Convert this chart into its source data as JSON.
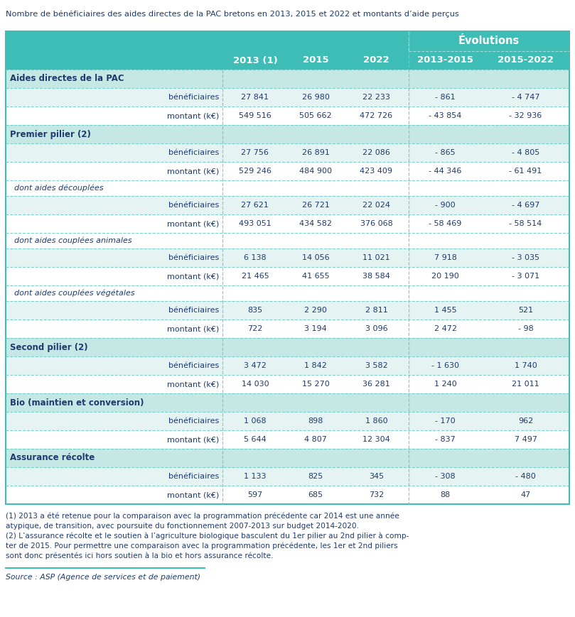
{
  "title": "Nombre de bénéficiaires des aides directes de la PAC bretons en 2013, 2015 et 2022 et montants d’aide perçus",
  "teal": "#3dbdb5",
  "section_bg": "#c5e8e5",
  "row_light": "#e5f4f2",
  "row_white": "#ffffff",
  "header_text": "#ffffff",
  "body_text": "#1e3a6e",
  "border_color": "#3dbdb5",
  "dashed_color": "#6dccc7",
  "columns": [
    "",
    "2013 (1)",
    "2015",
    "2022",
    "2013-2015",
    "2015-2022"
  ],
  "evolutions_label": "Évolutions",
  "rows": [
    {
      "type": "section",
      "label": "Aides directes de la PAC"
    },
    {
      "type": "data",
      "label": "bénéficiaires",
      "vals": [
        "27 841",
        "26 980",
        "22 233",
        "- 861",
        "- 4 747"
      ]
    },
    {
      "type": "data",
      "label": "montant (k€)",
      "vals": [
        "549 516",
        "505 662",
        "472 726",
        "- 43 854",
        "- 32 936"
      ]
    },
    {
      "type": "section",
      "label": "Premier pilier (2)"
    },
    {
      "type": "data",
      "label": "bénéficiaires",
      "vals": [
        "27 756",
        "26 891",
        "22 086",
        "- 865",
        "- 4 805"
      ]
    },
    {
      "type": "data",
      "label": "montant (k€)",
      "vals": [
        "529 246",
        "484 900",
        "423 409",
        "- 44 346",
        "- 61 491"
      ]
    },
    {
      "type": "subsection",
      "label": "dont aides découplées"
    },
    {
      "type": "data",
      "label": "bénéficiaires",
      "vals": [
        "27 621",
        "26 721",
        "22 024",
        "- 900",
        "- 4 697"
      ]
    },
    {
      "type": "data",
      "label": "montant (k€)",
      "vals": [
        "493 051",
        "434 582",
        "376 068",
        "- 58 469",
        "- 58 514"
      ]
    },
    {
      "type": "subsection",
      "label": "dont aides couplées animales"
    },
    {
      "type": "data",
      "label": "bénéficiaires",
      "vals": [
        "6 138",
        "14 056",
        "11 021",
        "7 918",
        "- 3 035"
      ]
    },
    {
      "type": "data",
      "label": "montant (k€)",
      "vals": [
        "21 465",
        "41 655",
        "38 584",
        "20 190",
        "- 3 071"
      ]
    },
    {
      "type": "subsection",
      "label": "dont aides couplées végétales"
    },
    {
      "type": "data",
      "label": "bénéficiaires",
      "vals": [
        "835",
        "2 290",
        "2 811",
        "1 455",
        "521"
      ]
    },
    {
      "type": "data",
      "label": "montant (k€)",
      "vals": [
        "722",
        "3 194",
        "3 096",
        "2 472",
        "- 98"
      ]
    },
    {
      "type": "section",
      "label": "Second pilier (2)"
    },
    {
      "type": "data",
      "label": "bénéficiaires",
      "vals": [
        "3 472",
        "1 842",
        "3 582",
        "- 1 630",
        "1 740"
      ]
    },
    {
      "type": "data",
      "label": "montant (k€)",
      "vals": [
        "14 030",
        "15 270",
        "36 281",
        "1 240",
        "21 011"
      ]
    },
    {
      "type": "section",
      "label": "Bio (maintien et conversion)"
    },
    {
      "type": "data",
      "label": "bénéficiaires",
      "vals": [
        "1 068",
        "898",
        "1 860",
        "- 170",
        "962"
      ]
    },
    {
      "type": "data",
      "label": "montant (k€)",
      "vals": [
        "5 644",
        "4 807",
        "12 304",
        "- 837",
        "7 497"
      ]
    },
    {
      "type": "section",
      "label": "Assurance récolte"
    },
    {
      "type": "data",
      "label": "bénéficiaires",
      "vals": [
        "1 133",
        "825",
        "345",
        "- 308",
        "- 480"
      ]
    },
    {
      "type": "data",
      "label": "montant (k€)",
      "vals": [
        "597",
        "685",
        "732",
        "88",
        "47"
      ]
    }
  ],
  "footnote1": "(1) 2013 a été retenue pour la comparaison avec la programmation précédente car 2014 est une année\natypique, de transition, avec poursuite du fonctionnement 2007-2013 sur budget 2014-2020.",
  "footnote2": "(2) L’assurance récolte et le soutien à l’agriculture biologique basculent du 1er pilier au 2nd pilier à comp-\nter de 2015. Pour permettre une comparaison avec la programmation précédente, les 1er et 2nd piliers\nsont donc présentés ici hors soutien à la bio et hors assurance récolte.",
  "source": "Source : ASP (Agence de services et de paiement)"
}
